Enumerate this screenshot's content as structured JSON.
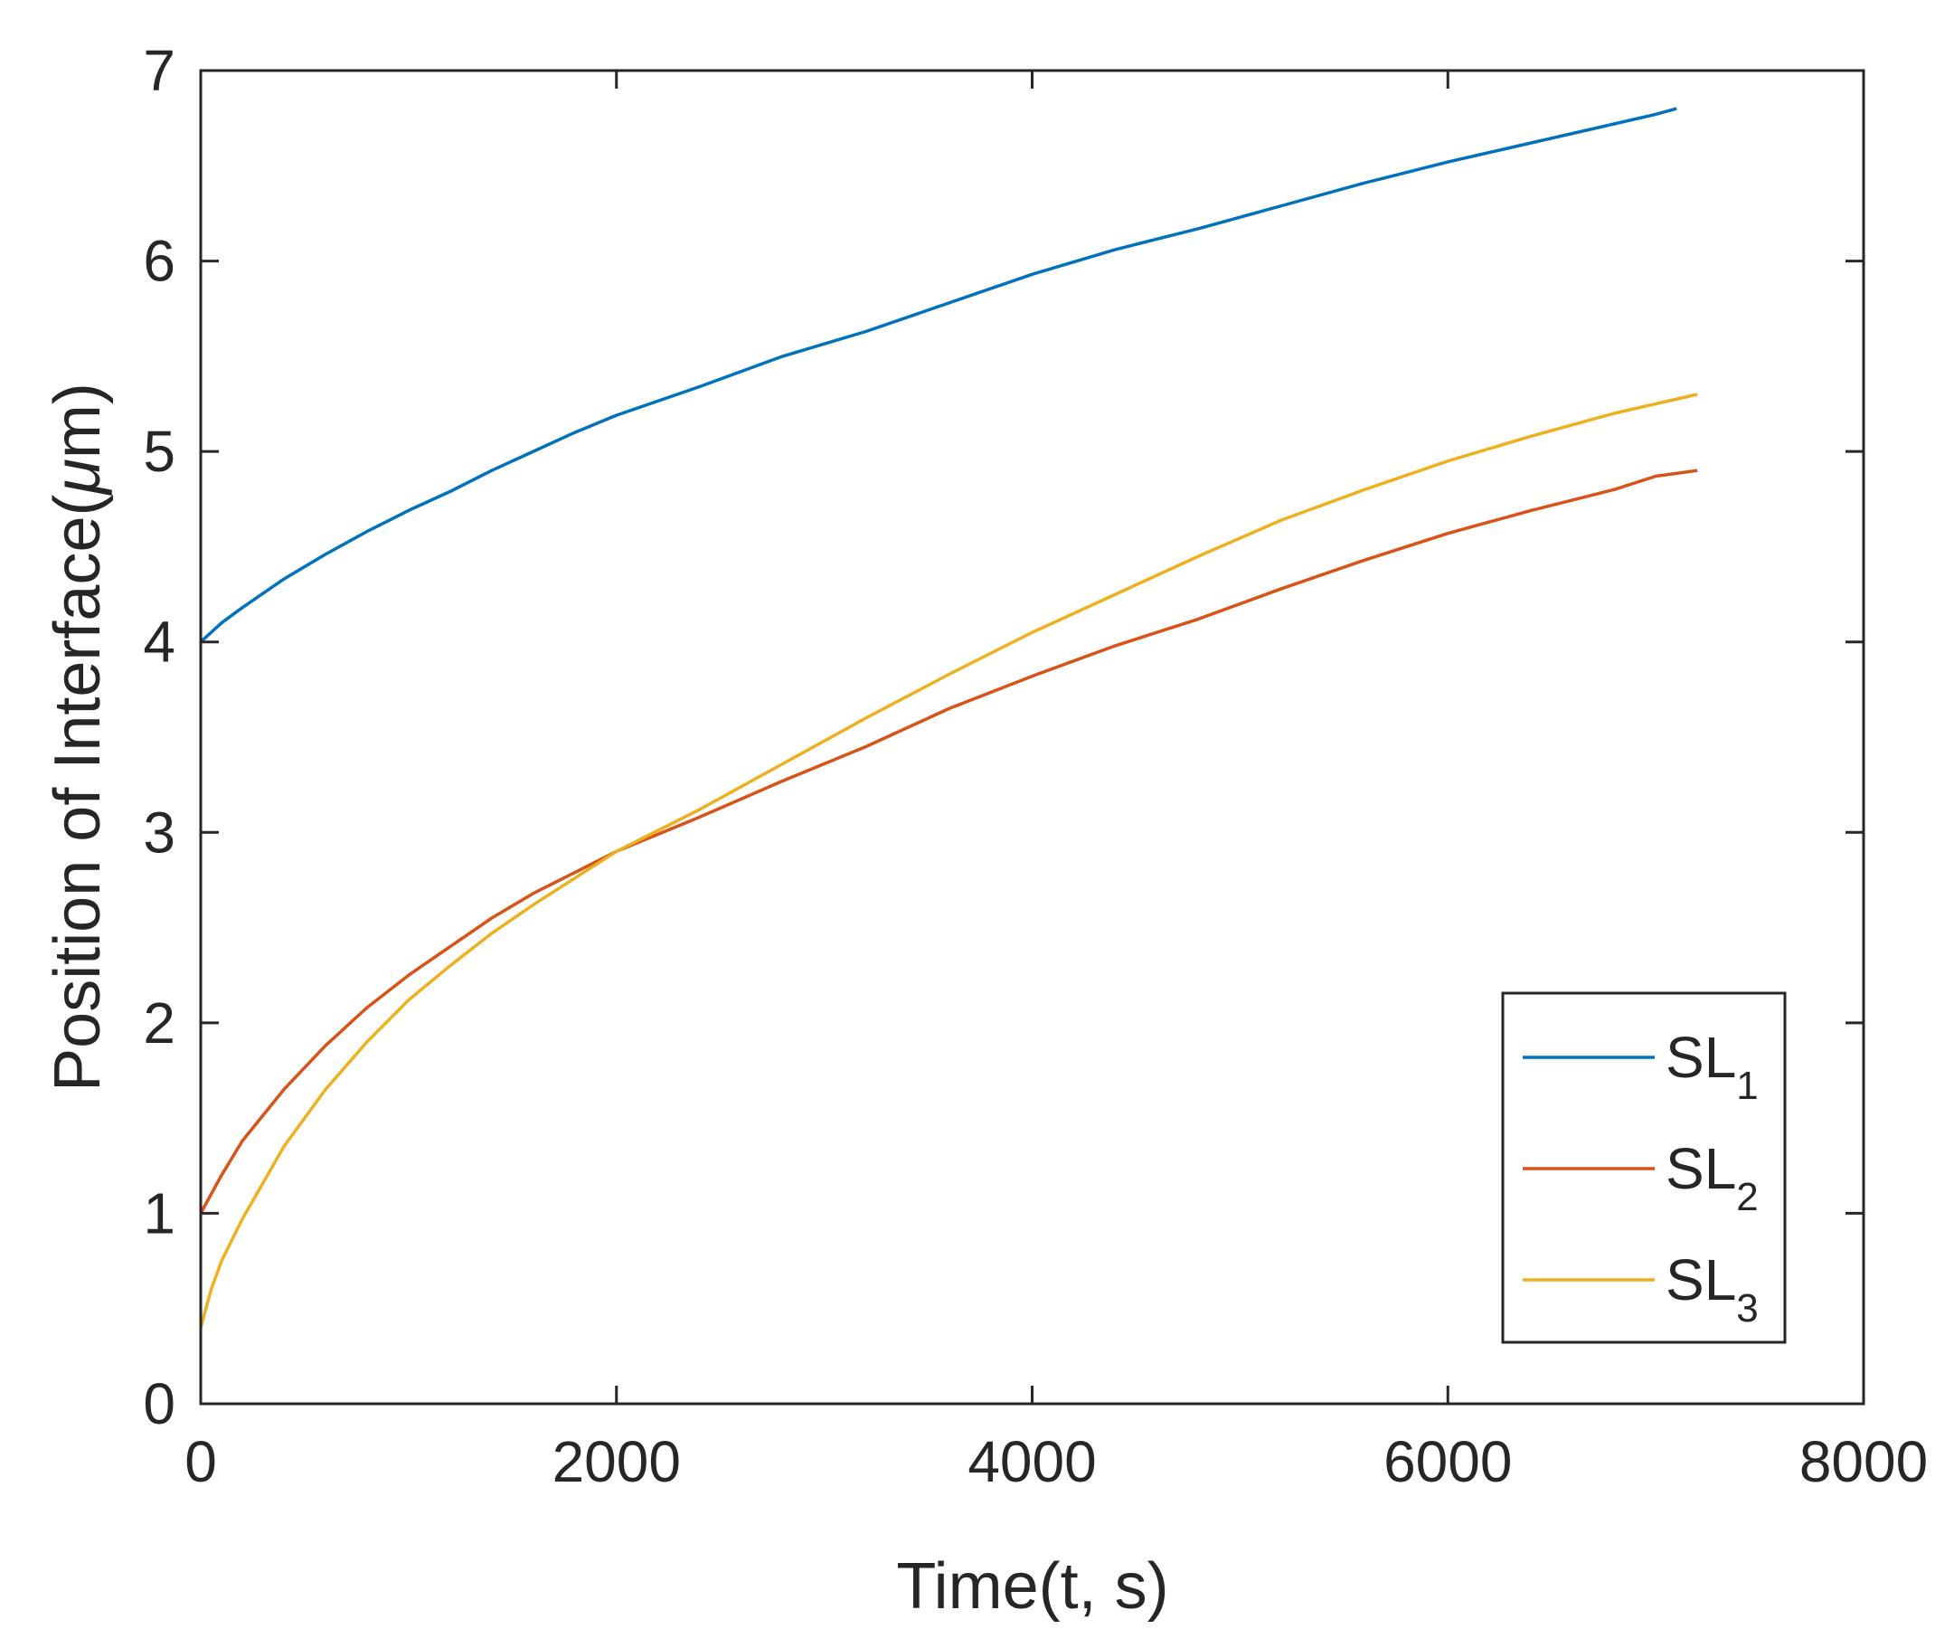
{
  "chart_data": {
    "type": "line",
    "title": "",
    "xlabel": "Time(t, s)",
    "ylabel_prefix": "Position of Interface(",
    "ylabel_mu": "μ",
    "ylabel_suffix": "m)",
    "xlim": [
      0,
      8000
    ],
    "ylim": [
      0,
      7
    ],
    "xticks": [
      0,
      2000,
      4000,
      6000,
      8000
    ],
    "yticks": [
      0,
      1,
      2,
      3,
      4,
      5,
      6,
      7
    ],
    "grid": false,
    "legend_position": "bottom-right",
    "series": [
      {
        "name": "SL",
        "subscript": "1",
        "color": "#0072BD",
        "x": [
          0,
          100,
          200,
          400,
          600,
          800,
          1000,
          1200,
          1400,
          1600,
          1800,
          2000,
          2400,
          2800,
          3200,
          3600,
          4000,
          4400,
          4800,
          5200,
          5600,
          6000,
          6400,
          6800,
          7000,
          7100
        ],
        "y": [
          4.0,
          4.1,
          4.18,
          4.33,
          4.46,
          4.58,
          4.69,
          4.79,
          4.9,
          5.0,
          5.1,
          5.19,
          5.34,
          5.5,
          5.63,
          5.78,
          5.93,
          6.06,
          6.17,
          6.29,
          6.41,
          6.52,
          6.62,
          6.72,
          6.77,
          6.8
        ]
      },
      {
        "name": "SL",
        "subscript": "2",
        "color": "#D95319",
        "x": [
          0,
          100,
          200,
          400,
          600,
          800,
          1000,
          1200,
          1400,
          1600,
          1800,
          2000,
          2400,
          2800,
          3200,
          3600,
          4000,
          4400,
          4800,
          5200,
          5600,
          6000,
          6400,
          6800,
          7000,
          7200
        ],
        "y": [
          1.0,
          1.2,
          1.38,
          1.65,
          1.88,
          2.08,
          2.25,
          2.4,
          2.55,
          2.68,
          2.79,
          2.9,
          3.08,
          3.27,
          3.45,
          3.65,
          3.82,
          3.98,
          4.12,
          4.28,
          4.43,
          4.57,
          4.69,
          4.8,
          4.87,
          4.9
        ]
      },
      {
        "name": "SL",
        "subscript": "3",
        "color": "#EDB120",
        "x": [
          0,
          50,
          100,
          200,
          400,
          600,
          800,
          1000,
          1200,
          1400,
          1600,
          1800,
          2000,
          2400,
          2800,
          3200,
          3600,
          4000,
          4400,
          4800,
          5200,
          5600,
          6000,
          6400,
          6800,
          7000,
          7200
        ],
        "y": [
          0.4,
          0.6,
          0.75,
          0.97,
          1.35,
          1.65,
          1.9,
          2.12,
          2.3,
          2.47,
          2.62,
          2.76,
          2.9,
          3.12,
          3.36,
          3.6,
          3.83,
          4.05,
          4.25,
          4.45,
          4.64,
          4.8,
          4.95,
          5.08,
          5.2,
          5.25,
          5.3
        ]
      }
    ]
  }
}
